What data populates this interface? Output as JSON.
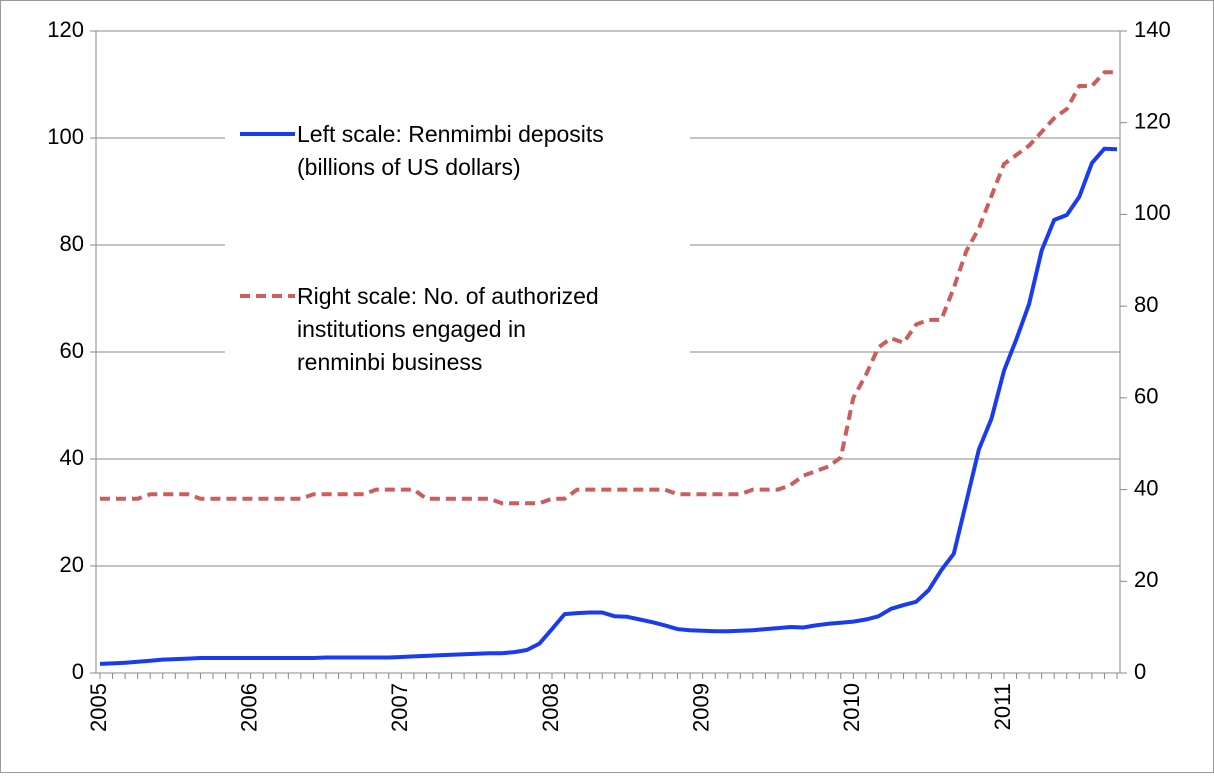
{
  "chart_data": {
    "type": "line",
    "categories": [
      "2005",
      null,
      null,
      null,
      null,
      null,
      null,
      null,
      null,
      null,
      null,
      null,
      "2006",
      null,
      null,
      null,
      null,
      null,
      null,
      null,
      null,
      null,
      null,
      null,
      "2007",
      null,
      null,
      null,
      null,
      null,
      null,
      null,
      null,
      null,
      null,
      null,
      "2008",
      null,
      null,
      null,
      null,
      null,
      null,
      null,
      null,
      null,
      null,
      null,
      "2009",
      null,
      null,
      null,
      null,
      null,
      null,
      null,
      null,
      null,
      null,
      null,
      "2010",
      null,
      null,
      null,
      null,
      null,
      null,
      null,
      null,
      null,
      null,
      null,
      "2011",
      null,
      null,
      null,
      null,
      null,
      null,
      null,
      null,
      null
    ],
    "series": [
      {
        "name": "Left scale: Renmimbi deposits\n(billions of US dollars)",
        "color": "#1a3cf0",
        "dash": false,
        "values": [
          1.7,
          1.8,
          1.9,
          2.1,
          2.3,
          2.5,
          2.6,
          2.7,
          2.8,
          2.8,
          2.8,
          2.8,
          2.8,
          2.8,
          2.8,
          2.8,
          2.8,
          2.8,
          2.9,
          2.9,
          2.9,
          2.9,
          2.9,
          2.9,
          3.0,
          3.1,
          3.2,
          3.3,
          3.4,
          3.5,
          3.6,
          3.7,
          3.7,
          3.9,
          4.3,
          5.5,
          8.2,
          11.0,
          11.2,
          11.3,
          11.3,
          10.6,
          10.5,
          10.0,
          9.5,
          8.9,
          8.2,
          8.0,
          7.9,
          7.8,
          7.8,
          7.9,
          8.0,
          8.2,
          8.4,
          8.6,
          8.5,
          8.9,
          9.2,
          9.4,
          9.6,
          10.0,
          10.6,
          12.0,
          12.7,
          13.3,
          15.5,
          19.2,
          22.3,
          32,
          41.8,
          47.5,
          56.5,
          62.5,
          69,
          79,
          84.7,
          85.6,
          89,
          95.3,
          98,
          97.9
        ]
      },
      {
        "name": "Right scale: No. of authorized\ninstitutions engaged in\nrenminbi business",
        "color": "#cd5c5c",
        "dash": true,
        "axis": "y2",
        "values": [
          38,
          38,
          38,
          38,
          39,
          39,
          39,
          39,
          38,
          38,
          38,
          38,
          38,
          38,
          38,
          38,
          38,
          39,
          39,
          39,
          39,
          39,
          40,
          40,
          40,
          40,
          38,
          38,
          38,
          38,
          38,
          38,
          37,
          37,
          37,
          37,
          38,
          38,
          40,
          40,
          40,
          40,
          40,
          40,
          40,
          40,
          39,
          39,
          39,
          39,
          39,
          39,
          40,
          40,
          40,
          41,
          43,
          44,
          45,
          47,
          60,
          65,
          71,
          73,
          72,
          76,
          77,
          77,
          84,
          92,
          97,
          104,
          111,
          113,
          115,
          118,
          121,
          123,
          128,
          128,
          131,
          131
        ]
      }
    ],
    "ylim": [
      0,
      120
    ],
    "yticks": [
      0,
      20,
      40,
      60,
      80,
      100,
      120
    ],
    "y2lim": [
      0,
      140
    ],
    "y2ticks": [
      0,
      20,
      40,
      60,
      80,
      100,
      120,
      140
    ],
    "grid": true
  }
}
